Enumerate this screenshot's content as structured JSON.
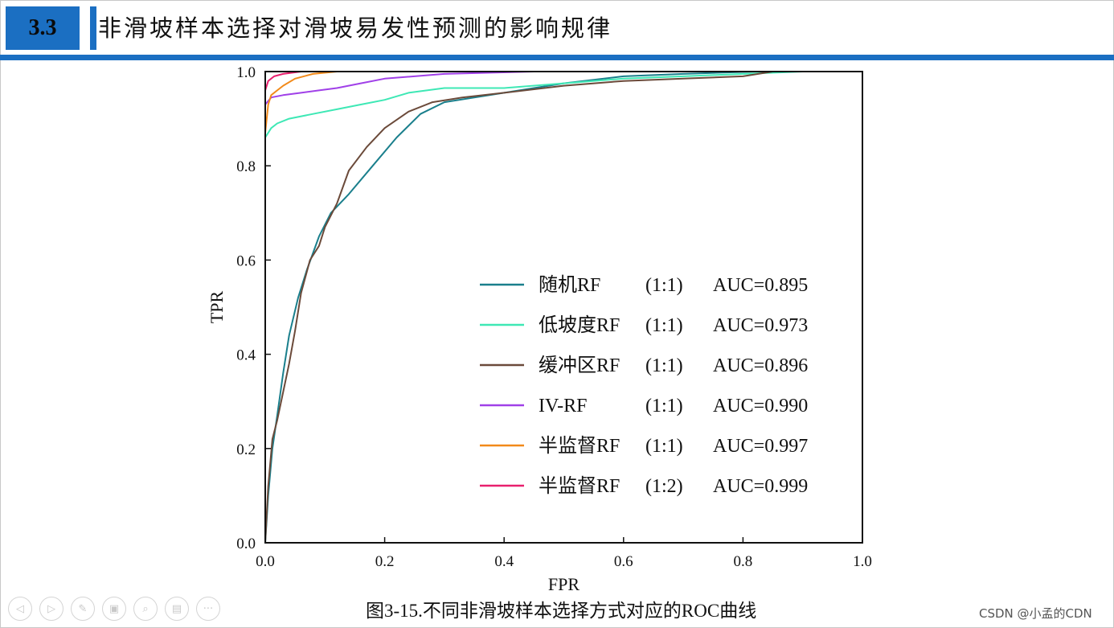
{
  "slide": {
    "section_number": "3.3",
    "title": "非滑坡样本选择对滑坡易发性预测的影响规律",
    "caption": "图3-15.不同非滑坡样本选择方式对应的ROC曲线",
    "watermark": "CSDN @小孟的CDN",
    "colors": {
      "accent": "#1b6fc2"
    }
  },
  "nav": {
    "buttons": [
      {
        "name": "previous-slide-button",
        "icon": "chevron-left-icon",
        "glyph": "◁"
      },
      {
        "name": "next-slide-button",
        "icon": "chevron-right-icon",
        "glyph": "▷"
      },
      {
        "name": "pen-tool-button",
        "icon": "pen-icon",
        "glyph": "✎"
      },
      {
        "name": "slides-overview-button",
        "icon": "slides-icon",
        "glyph": "▣"
      },
      {
        "name": "zoom-button",
        "icon": "magnifier-icon",
        "glyph": "⌕"
      },
      {
        "name": "subtitles-button",
        "icon": "subtitles-icon",
        "glyph": "▤"
      },
      {
        "name": "more-options-button",
        "icon": "more-icon",
        "glyph": "···"
      }
    ]
  },
  "chart_data": {
    "type": "line",
    "title": "",
    "xlabel": "FPR",
    "ylabel": "TPR",
    "xlim": [
      0,
      1
    ],
    "ylim": [
      0,
      1
    ],
    "xticks": [
      0.0,
      0.2,
      0.4,
      0.6,
      0.8,
      1.0
    ],
    "yticks": [
      0.0,
      0.2,
      0.4,
      0.6,
      0.8,
      1.0
    ],
    "tick_labels": [
      "0.0",
      "0.2",
      "0.4",
      "0.6",
      "0.8",
      "1.0"
    ],
    "grid": false,
    "legend_position": "lower-right",
    "series": [
      {
        "name": "随机RF",
        "ratio": "(1:1)",
        "auc_label": "AUC=0.895",
        "color": "#1a7f8c",
        "points": [
          [
            0,
            0
          ],
          [
            0.005,
            0.1
          ],
          [
            0.012,
            0.2
          ],
          [
            0.02,
            0.27
          ],
          [
            0.03,
            0.36
          ],
          [
            0.04,
            0.44
          ],
          [
            0.055,
            0.52
          ],
          [
            0.07,
            0.58
          ],
          [
            0.09,
            0.65
          ],
          [
            0.11,
            0.7
          ],
          [
            0.14,
            0.74
          ],
          [
            0.18,
            0.8
          ],
          [
            0.22,
            0.86
          ],
          [
            0.26,
            0.91
          ],
          [
            0.3,
            0.935
          ],
          [
            0.35,
            0.945
          ],
          [
            0.4,
            0.955
          ],
          [
            0.45,
            0.965
          ],
          [
            0.5,
            0.975
          ],
          [
            0.6,
            0.99
          ],
          [
            0.7,
            0.995
          ],
          [
            0.82,
            1.0
          ],
          [
            1.0,
            1.0
          ]
        ]
      },
      {
        "name": "低坡度RF",
        "ratio": "(1:1)",
        "auc_label": "AUC=0.973",
        "color": "#3ee8b5",
        "points": [
          [
            0,
            0
          ],
          [
            0,
            0.86
          ],
          [
            0.01,
            0.88
          ],
          [
            0.02,
            0.89
          ],
          [
            0.04,
            0.9
          ],
          [
            0.08,
            0.91
          ],
          [
            0.12,
            0.92
          ],
          [
            0.16,
            0.93
          ],
          [
            0.2,
            0.94
          ],
          [
            0.24,
            0.955
          ],
          [
            0.3,
            0.965
          ],
          [
            0.4,
            0.965
          ],
          [
            0.5,
            0.975
          ],
          [
            0.6,
            0.985
          ],
          [
            0.7,
            0.99
          ],
          [
            0.8,
            0.995
          ],
          [
            0.9,
            1.0
          ],
          [
            1.0,
            1.0
          ]
        ]
      },
      {
        "name": "缓冲区RF",
        "ratio": "(1:1)",
        "auc_label": "AUC=0.896",
        "color": "#6b4a3a",
        "points": [
          [
            0,
            0
          ],
          [
            0.005,
            0.12
          ],
          [
            0.012,
            0.22
          ],
          [
            0.02,
            0.26
          ],
          [
            0.03,
            0.32
          ],
          [
            0.04,
            0.38
          ],
          [
            0.05,
            0.45
          ],
          [
            0.06,
            0.53
          ],
          [
            0.075,
            0.6
          ],
          [
            0.09,
            0.63
          ],
          [
            0.1,
            0.67
          ],
          [
            0.12,
            0.72
          ],
          [
            0.14,
            0.79
          ],
          [
            0.17,
            0.84
          ],
          [
            0.2,
            0.88
          ],
          [
            0.24,
            0.915
          ],
          [
            0.28,
            0.935
          ],
          [
            0.33,
            0.945
          ],
          [
            0.4,
            0.955
          ],
          [
            0.5,
            0.97
          ],
          [
            0.6,
            0.98
          ],
          [
            0.7,
            0.985
          ],
          [
            0.8,
            0.99
          ],
          [
            0.85,
            1.0
          ],
          [
            1.0,
            1.0
          ]
        ]
      },
      {
        "name": "IV-RF",
        "ratio": "(1:1)",
        "auc_label": "AUC=0.990",
        "color": "#a040e8",
        "points": [
          [
            0,
            0
          ],
          [
            0,
            0.93
          ],
          [
            0.01,
            0.945
          ],
          [
            0.03,
            0.95
          ],
          [
            0.06,
            0.955
          ],
          [
            0.09,
            0.96
          ],
          [
            0.12,
            0.965
          ],
          [
            0.16,
            0.975
          ],
          [
            0.2,
            0.985
          ],
          [
            0.3,
            0.995
          ],
          [
            0.45,
            1.0
          ],
          [
            1.0,
            1.0
          ]
        ]
      },
      {
        "name": "半监督RF",
        "ratio": "(1:1)",
        "auc_label": "AUC=0.997",
        "color": "#f28a1a",
        "points": [
          [
            0,
            0
          ],
          [
            0,
            0.87
          ],
          [
            0.005,
            0.93
          ],
          [
            0.01,
            0.95
          ],
          [
            0.02,
            0.96
          ],
          [
            0.03,
            0.97
          ],
          [
            0.05,
            0.985
          ],
          [
            0.08,
            0.995
          ],
          [
            0.12,
            1.0
          ],
          [
            1.0,
            1.0
          ]
        ]
      },
      {
        "name": "半监督RF",
        "ratio": "(1:2)",
        "auc_label": "AUC=0.999",
        "color": "#e8206e",
        "points": [
          [
            0,
            0
          ],
          [
            0,
            0.96
          ],
          [
            0.005,
            0.98
          ],
          [
            0.015,
            0.99
          ],
          [
            0.03,
            0.995
          ],
          [
            0.06,
            1.0
          ],
          [
            1.0,
            1.0
          ]
        ]
      }
    ]
  }
}
